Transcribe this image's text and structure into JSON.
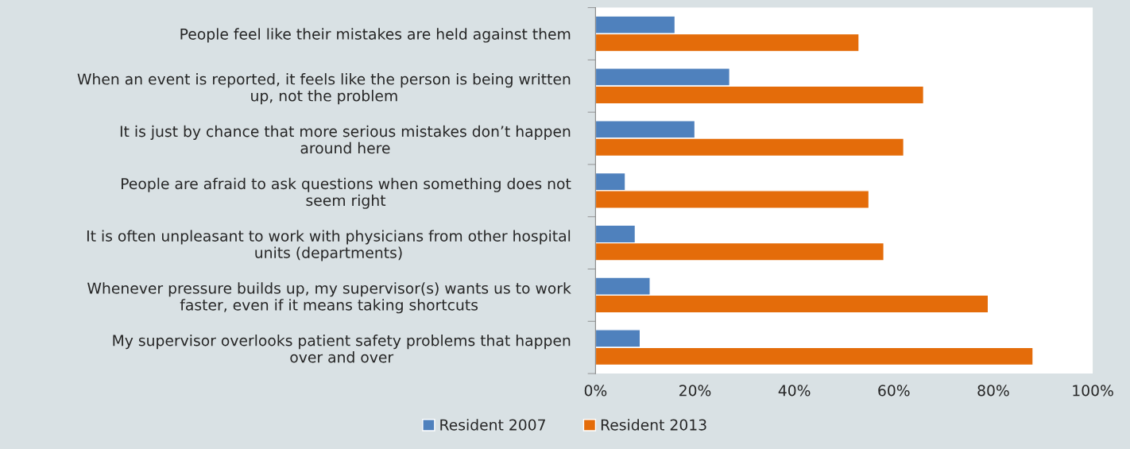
{
  "chart_data": {
    "type": "bar",
    "orientation": "horizontal",
    "categories": [
      "People feel like their mistakes are held against them",
      "When an event is reported, it feels like the person is being written\nup, not the problem",
      "It is just by chance that more serious mistakes don’t happen\naround here",
      "People are afraid to ask questions when something does not\nseem right",
      "It is often unpleasant to work with physicians from other hospital\nunits (departments)",
      "Whenever pressure builds up, my supervisor(s) wants us to work\nfaster, even if it means taking shortcuts",
      "My supervisor overlooks patient safety problems that happen\nover and over"
    ],
    "series": [
      {
        "name": "Resident 2007",
        "color": "#4f81bd",
        "values": [
          16,
          27,
          20,
          6,
          8,
          11,
          9
        ]
      },
      {
        "name": "Resident 2013",
        "color": "#e46c0a",
        "values": [
          53,
          66,
          62,
          55,
          58,
          79,
          88
        ]
      }
    ],
    "xlim": [
      0,
      100
    ],
    "xticks": [
      {
        "value": 0,
        "label": "0%"
      },
      {
        "value": 20,
        "label": "20%"
      },
      {
        "value": 40,
        "label": "40%"
      },
      {
        "value": 60,
        "label": "60%"
      },
      {
        "value": 80,
        "label": "80%"
      },
      {
        "value": 100,
        "label": "100%"
      }
    ],
    "grid": false,
    "legend": "bottom"
  }
}
